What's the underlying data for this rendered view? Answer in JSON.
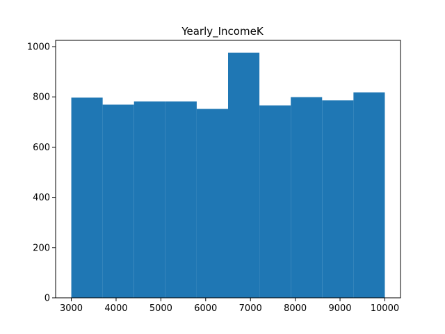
{
  "chart_data": {
    "type": "bar",
    "title": "Yearly_IncomeK",
    "xlabel": "",
    "ylabel": "",
    "bins": [
      {
        "x0": 3000,
        "x1": 3700,
        "count": 797
      },
      {
        "x0": 3700,
        "x1": 4400,
        "count": 769
      },
      {
        "x0": 4400,
        "x1": 5100,
        "count": 782
      },
      {
        "x0": 5100,
        "x1": 5800,
        "count": 782
      },
      {
        "x0": 5800,
        "x1": 6500,
        "count": 752
      },
      {
        "x0": 6500,
        "x1": 7200,
        "count": 976
      },
      {
        "x0": 7200,
        "x1": 7900,
        "count": 766
      },
      {
        "x0": 7900,
        "x1": 8600,
        "count": 799
      },
      {
        "x0": 8600,
        "x1": 9300,
        "count": 786
      },
      {
        "x0": 9300,
        "x1": 10000,
        "count": 818
      }
    ],
    "xlim": [
      2650,
      10350
    ],
    "ylim": [
      0,
      1025
    ],
    "xticks": [
      "3000",
      "4000",
      "5000",
      "6000",
      "7000",
      "8000",
      "9000",
      "10000"
    ],
    "yticks": [
      "0",
      "200",
      "400",
      "600",
      "800",
      "1000"
    ],
    "bar_color": "#1f77b4",
    "grid": false,
    "legend": "none"
  }
}
